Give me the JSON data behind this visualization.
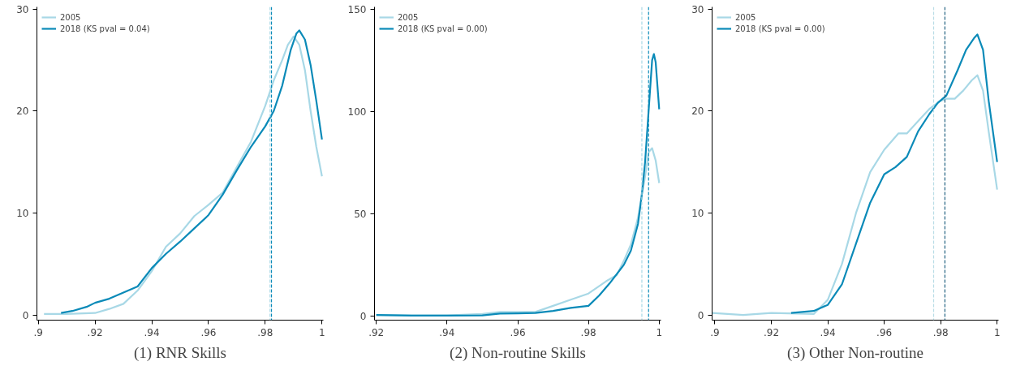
{
  "chart_data": [
    {
      "type": "line",
      "title": "(1) RNR Skills",
      "xlim": [
        0.8995,
        1.0005
      ],
      "ylim": [
        -0.5,
        30.2
      ],
      "xticks": [
        {
          "value": 0.9,
          "label": ".9"
        },
        {
          "value": 0.92,
          "label": ".92"
        },
        {
          "value": 0.94,
          "label": ".94"
        },
        {
          "value": 0.96,
          "label": ".96"
        },
        {
          "value": 0.98,
          "label": ".98"
        },
        1
      ],
      "yticks": [
        0,
        10,
        20,
        30
      ],
      "grid": false,
      "legend": "top left",
      "series": [
        {
          "name": "2005",
          "color": "#a8d8e6",
          "x": [
            0.902,
            0.91,
            0.92,
            0.925,
            0.93,
            0.935,
            0.94,
            0.945,
            0.95,
            0.955,
            0.96,
            0.965,
            0.97,
            0.975,
            0.98,
            0.983,
            0.986,
            0.988,
            0.99,
            0.992,
            0.994,
            0.996,
            0.998,
            1.0
          ],
          "values": [
            0.1,
            0.1,
            0.2,
            0.6,
            1.1,
            2.4,
            4.3,
            6.7,
            8.0,
            9.7,
            10.8,
            12.0,
            14.5,
            17.0,
            20.5,
            23.0,
            25.0,
            26.5,
            27.3,
            26.5,
            24.0,
            20.0,
            16.5,
            13.6
          ]
        },
        {
          "name": "2018 (KS pval = 0.04)",
          "color": "#0a8ab8",
          "x": [
            0.908,
            0.912,
            0.917,
            0.92,
            0.925,
            0.93,
            0.935,
            0.94,
            0.945,
            0.95,
            0.955,
            0.96,
            0.965,
            0.97,
            0.975,
            0.98,
            0.983,
            0.986,
            0.989,
            0.991,
            0.992,
            0.994,
            0.996,
            0.998,
            1.0
          ],
          "values": [
            0.2,
            0.4,
            0.8,
            1.2,
            1.6,
            2.2,
            2.8,
            4.6,
            6.0,
            7.2,
            8.5,
            9.8,
            11.8,
            14.2,
            16.5,
            18.5,
            20.0,
            22.5,
            26.0,
            27.6,
            27.9,
            27.0,
            24.5,
            21.0,
            17.2
          ]
        }
      ],
      "ref_lines": [
        {
          "axis": "x",
          "value": 0.9817,
          "label": null,
          "color": "#a8d8e6",
          "line_style": "dashed"
        },
        {
          "axis": "x",
          "value": 0.9822,
          "label": null,
          "color": "#0a8ab8",
          "line_style": "dashed"
        }
      ]
    },
    {
      "type": "line",
      "title": "(2) Non-routine Skills",
      "xlim": [
        0.9195,
        1.0005
      ],
      "ylim": [
        -2,
        151
      ],
      "xticks": [
        {
          "value": 0.92,
          "label": ".92"
        },
        {
          "value": 0.94,
          "label": ".94"
        },
        {
          "value": 0.96,
          "label": ".96"
        },
        {
          "value": 0.98,
          "label": ".98"
        },
        1
      ],
      "yticks": [
        0,
        50,
        100,
        150
      ],
      "grid": false,
      "legend": "top left",
      "series": [
        {
          "name": "2005",
          "color": "#a8d8e6",
          "x": [
            0.92,
            0.93,
            0.94,
            0.95,
            0.955,
            0.96,
            0.965,
            0.97,
            0.975,
            0.98,
            0.985,
            0.988,
            0.99,
            0.992,
            0.994,
            0.996,
            0.997,
            0.998,
            0.999,
            1.0
          ],
          "values": [
            0.5,
            0.3,
            0.3,
            1,
            2,
            2,
            2,
            5,
            8,
            11,
            17,
            20,
            27,
            35,
            48,
            68,
            80,
            82,
            76,
            65
          ]
        },
        {
          "name": "2018 (KS pval = 0.00)",
          "color": "#0a8ab8",
          "x": [
            0.92,
            0.93,
            0.94,
            0.95,
            0.955,
            0.96,
            0.965,
            0.97,
            0.975,
            0.98,
            0.983,
            0.986,
            0.99,
            0.992,
            0.994,
            0.995,
            0.996,
            0.997,
            0.998,
            0.9985,
            0.999,
            1.0
          ],
          "values": [
            0.5,
            0.2,
            0.2,
            0.3,
            1.2,
            1.3,
            1.5,
            2.5,
            4,
            5,
            10,
            16,
            25,
            32,
            45,
            58,
            75,
            100,
            125,
            128,
            124,
            101
          ]
        }
      ],
      "ref_lines": [
        {
          "axis": "x",
          "value": 0.9951,
          "label": null,
          "color": "#a8d8e6",
          "line_style": "dashed"
        },
        {
          "axis": "x",
          "value": 0.997,
          "label": null,
          "color": "#0a8ab8",
          "line_style": "dashed"
        }
      ]
    },
    {
      "type": "line",
      "title": "(3) Other Non-routine",
      "xlim": [
        0.899,
        1.0005
      ],
      "ylim": [
        -0.5,
        30.2
      ],
      "xticks": [
        {
          "value": 0.9,
          "label": ".9"
        },
        {
          "value": 0.92,
          "label": ".92"
        },
        {
          "value": 0.94,
          "label": ".94"
        },
        {
          "value": 0.96,
          "label": ".96"
        },
        {
          "value": 0.98,
          "label": ".98"
        },
        1
      ],
      "yticks": [
        0,
        10,
        20,
        30
      ],
      "grid": false,
      "legend": "top left",
      "series": [
        {
          "name": "2005",
          "color": "#a8d8e6",
          "x": [
            0.899,
            0.91,
            0.92,
            0.935,
            0.94,
            0.945,
            0.95,
            0.955,
            0.96,
            0.965,
            0.968,
            0.972,
            0.976,
            0.98,
            0.982,
            0.985,
            0.988,
            0.991,
            0.993,
            0.995,
            0.997,
            1.0
          ],
          "values": [
            0.2,
            0,
            0.2,
            0.1,
            1.5,
            5,
            10,
            14,
            16.2,
            17.8,
            17.8,
            19,
            20.2,
            21,
            21.2,
            21.2,
            22,
            23,
            23.5,
            22,
            18,
            12.3
          ]
        },
        {
          "name": "2018 (KS pval = 0.00)",
          "color": "#0a8ab8",
          "x": [
            0.927,
            0.935,
            0.94,
            0.945,
            0.95,
            0.955,
            0.96,
            0.964,
            0.968,
            0.972,
            0.976,
            0.979,
            0.982,
            0.986,
            0.989,
            0.992,
            0.993,
            0.995,
            0.997,
            1.0
          ],
          "values": [
            0.2,
            0.4,
            1,
            3,
            7,
            11,
            13.8,
            14.5,
            15.5,
            18,
            19.7,
            20.8,
            21.5,
            24,
            26,
            27.2,
            27.5,
            26,
            21,
            15
          ]
        }
      ],
      "ref_lines": [
        {
          "axis": "x",
          "value": 0.9775,
          "label": null,
          "color": "#b8dce6",
          "line_style": "dashed"
        },
        {
          "axis": "x",
          "value": 0.9815,
          "label": null,
          "color": "#1f5f7f",
          "line_style": "dashed"
        }
      ]
    }
  ]
}
